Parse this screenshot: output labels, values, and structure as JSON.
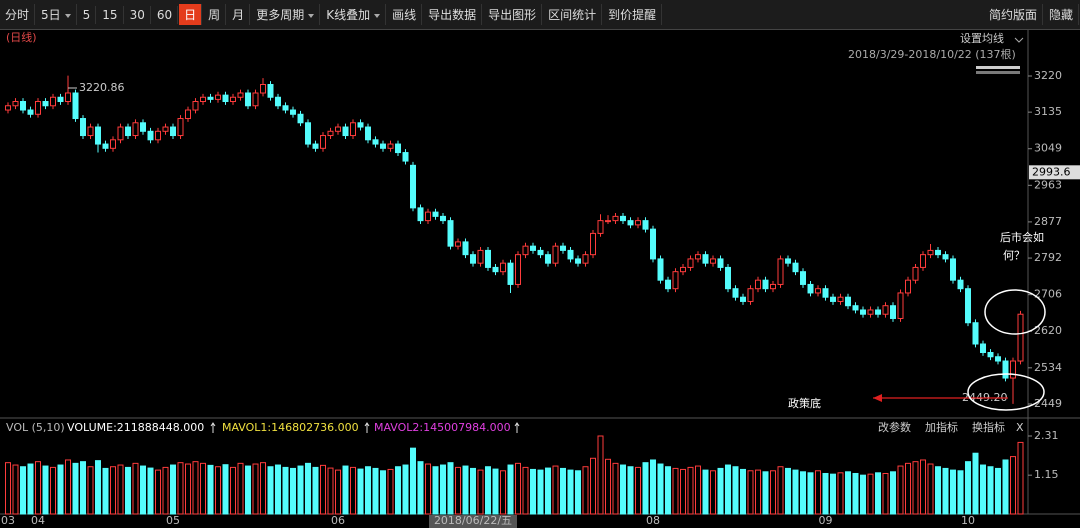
{
  "toolbar": {
    "left": [
      "分时",
      "5日",
      "5",
      "15",
      "30",
      "60",
      "日",
      "周",
      "月",
      "更多周期",
      "K线叠加",
      "画线",
      "导出数据",
      "导出图形",
      "区间统计",
      "到价提醒"
    ],
    "right": [
      "简约版面",
      "隐藏"
    ],
    "active": 6,
    "dropdowns": [
      1,
      9,
      10
    ]
  },
  "period_label": "(日线)",
  "ma_setting": "设置均线",
  "range_label": "2018/3/29-2018/10/22 (137根)",
  "volume_header": {
    "name": "VOL (5,10)",
    "volume": "VOLUME:211888448.000",
    "mavol1": "MAVOL1:146802736.000",
    "mavol2": "MAVOL2:145007984.000",
    "buttons": [
      "改参数",
      "加指标",
      "换指标",
      "X"
    ]
  },
  "annotations": {
    "high": "3220.86",
    "low": "2449.20",
    "policy_bottom": "政策底",
    "question": [
      "后市会如",
      "何？"
    ]
  },
  "chart_data": {
    "type": "candlestick",
    "up_color": "#ff3c3c",
    "down_color": "#54fcfc",
    "ylim": [
      2423.1,
      3328.1
    ],
    "yticks": [
      3220,
      3135,
      3049,
      2963,
      2877,
      2792,
      2706,
      2620,
      2534,
      2449
    ],
    "marker": 2993.6,
    "categories": [
      "03",
      null,
      null,
      null,
      "04",
      null,
      null,
      null,
      null,
      null,
      null,
      null,
      null,
      null,
      null,
      null,
      null,
      null,
      null,
      null,
      null,
      null,
      "05",
      null,
      null,
      null,
      null,
      null,
      null,
      null,
      null,
      null,
      null,
      null,
      null,
      null,
      null,
      null,
      null,
      null,
      null,
      null,
      null,
      null,
      "06",
      null,
      null,
      null,
      null,
      null,
      null,
      null,
      null,
      null,
      null,
      null,
      null,
      null,
      null,
      null,
      null,
      null,
      "2018/06/22/五",
      null,
      null,
      null,
      null,
      null,
      null,
      null,
      null,
      null,
      null,
      null,
      null,
      null,
      null,
      null,
      null,
      null,
      null,
      null,
      null,
      null,
      null,
      null,
      "08",
      null,
      null,
      null,
      null,
      null,
      null,
      null,
      null,
      null,
      null,
      null,
      null,
      null,
      null,
      null,
      null,
      null,
      null,
      null,
      null,
      null,
      null,
      "09",
      null,
      null,
      null,
      null,
      null,
      null,
      null,
      null,
      null,
      null,
      null,
      null,
      null,
      null,
      null,
      null,
      null,
      null,
      "10",
      null,
      null,
      null,
      null,
      null,
      null,
      null
    ],
    "highlighted_category": 62,
    "candles": [
      [
        3140,
        3158,
        3132,
        3150
      ],
      [
        3150,
        3168,
        3142,
        3160
      ],
      [
        3160,
        3168,
        3132,
        3140
      ],
      [
        3140,
        3148,
        3122,
        3130
      ],
      [
        3130,
        3168,
        3122,
        3160
      ],
      [
        3160,
        3168,
        3142,
        3150
      ],
      [
        3150,
        3178,
        3142,
        3170
      ],
      [
        3170,
        3178,
        3152,
        3160
      ],
      [
        3160,
        3220.86,
        3152,
        3180
      ],
      [
        3180,
        3188,
        3112,
        3120
      ],
      [
        3120,
        3128,
        3072,
        3080
      ],
      [
        3080,
        3108,
        3072,
        3100
      ],
      [
        3100,
        3108,
        3040,
        3060
      ],
      [
        3060,
        3068,
        3042,
        3050
      ],
      [
        3050,
        3078,
        3042,
        3070
      ],
      [
        3070,
        3108,
        3062,
        3100
      ],
      [
        3100,
        3108,
        3072,
        3080
      ],
      [
        3080,
        3118,
        3072,
        3110
      ],
      [
        3110,
        3118,
        3082,
        3090
      ],
      [
        3090,
        3098,
        3062,
        3070
      ],
      [
        3070,
        3098,
        3062,
        3090
      ],
      [
        3090,
        3108,
        3082,
        3100
      ],
      [
        3100,
        3108,
        3072,
        3080
      ],
      [
        3080,
        3128,
        3072,
        3120
      ],
      [
        3120,
        3148,
        3112,
        3140
      ],
      [
        3140,
        3168,
        3132,
        3160
      ],
      [
        3160,
        3178,
        3152,
        3170
      ],
      [
        3170,
        3178,
        3157,
        3165
      ],
      [
        3165,
        3183,
        3157,
        3175
      ],
      [
        3175,
        3183,
        3152,
        3160
      ],
      [
        3160,
        3178,
        3152,
        3170
      ],
      [
        3170,
        3188,
        3162,
        3180
      ],
      [
        3180,
        3188,
        3142,
        3150
      ],
      [
        3150,
        3188,
        3142,
        3180
      ],
      [
        3180,
        3215,
        3172,
        3200
      ],
      [
        3200,
        3208,
        3162,
        3170
      ],
      [
        3170,
        3178,
        3142,
        3150
      ],
      [
        3150,
        3158,
        3132,
        3140
      ],
      [
        3140,
        3148,
        3122,
        3130
      ],
      [
        3130,
        3138,
        3102,
        3110
      ],
      [
        3110,
        3118,
        3052,
        3060
      ],
      [
        3060,
        3068,
        3042,
        3050
      ],
      [
        3050,
        3088,
        3042,
        3080
      ],
      [
        3080,
        3098,
        3072,
        3090
      ],
      [
        3090,
        3108,
        3082,
        3100
      ],
      [
        3100,
        3108,
        3072,
        3080
      ],
      [
        3080,
        3118,
        3072,
        3110
      ],
      [
        3110,
        3118,
        3092,
        3100
      ],
      [
        3100,
        3108,
        3062,
        3070
      ],
      [
        3070,
        3078,
        3052,
        3060
      ],
      [
        3060,
        3068,
        3042,
        3050
      ],
      [
        3050,
        3068,
        3042,
        3060
      ],
      [
        3060,
        3068,
        3032,
        3040
      ],
      [
        3040,
        3048,
        3012,
        3020
      ],
      [
        3010,
        3018,
        2902,
        2910
      ],
      [
        2910,
        2918,
        2872,
        2880
      ],
      [
        2880,
        2908,
        2872,
        2900
      ],
      [
        2900,
        2908,
        2882,
        2890
      ],
      [
        2890,
        2898,
        2872,
        2880
      ],
      [
        2880,
        2888,
        2812,
        2820
      ],
      [
        2820,
        2838,
        2812,
        2830
      ],
      [
        2830,
        2838,
        2792,
        2800
      ],
      [
        2800,
        2808,
        2772,
        2780
      ],
      [
        2780,
        2818,
        2772,
        2810
      ],
      [
        2810,
        2818,
        2762,
        2770
      ],
      [
        2770,
        2778,
        2752,
        2760
      ],
      [
        2760,
        2788,
        2752,
        2780
      ],
      [
        2780,
        2788,
        2710,
        2730
      ],
      [
        2730,
        2808,
        2722,
        2800
      ],
      [
        2800,
        2828,
        2792,
        2820
      ],
      [
        2820,
        2828,
        2802,
        2810
      ],
      [
        2810,
        2818,
        2792,
        2800
      ],
      [
        2800,
        2808,
        2772,
        2780
      ],
      [
        2780,
        2828,
        2772,
        2820
      ],
      [
        2820,
        2828,
        2802,
        2810
      ],
      [
        2810,
        2818,
        2782,
        2790
      ],
      [
        2790,
        2798,
        2772,
        2780
      ],
      [
        2780,
        2808,
        2772,
        2800
      ],
      [
        2800,
        2858,
        2792,
        2850
      ],
      [
        2850,
        2895,
        2842,
        2880
      ],
      [
        2880,
        2893,
        2872,
        2880
      ],
      [
        2880,
        2898,
        2872,
        2890
      ],
      [
        2890,
        2898,
        2872,
        2880
      ],
      [
        2880,
        2888,
        2862,
        2870
      ],
      [
        2870,
        2888,
        2862,
        2880
      ],
      [
        2880,
        2888,
        2852,
        2860
      ],
      [
        2860,
        2868,
        2782,
        2790
      ],
      [
        2790,
        2798,
        2732,
        2740
      ],
      [
        2740,
        2748,
        2712,
        2720
      ],
      [
        2720,
        2768,
        2712,
        2760
      ],
      [
        2760,
        2778,
        2752,
        2770
      ],
      [
        2770,
        2798,
        2762,
        2790
      ],
      [
        2790,
        2808,
        2782,
        2800
      ],
      [
        2800,
        2808,
        2772,
        2780
      ],
      [
        2780,
        2798,
        2772,
        2790
      ],
      [
        2790,
        2798,
        2762,
        2770
      ],
      [
        2770,
        2778,
        2712,
        2720
      ],
      [
        2720,
        2728,
        2692,
        2700
      ],
      [
        2700,
        2708,
        2682,
        2690
      ],
      [
        2690,
        2728,
        2682,
        2720
      ],
      [
        2720,
        2748,
        2712,
        2740
      ],
      [
        2740,
        2748,
        2712,
        2720
      ],
      [
        2720,
        2738,
        2712,
        2730
      ],
      [
        2730,
        2798,
        2722,
        2790
      ],
      [
        2790,
        2798,
        2772,
        2780
      ],
      [
        2780,
        2788,
        2752,
        2760
      ],
      [
        2760,
        2768,
        2722,
        2730
      ],
      [
        2730,
        2738,
        2702,
        2710
      ],
      [
        2710,
        2728,
        2702,
        2720
      ],
      [
        2720,
        2728,
        2692,
        2700
      ],
      [
        2700,
        2708,
        2682,
        2690
      ],
      [
        2690,
        2708,
        2682,
        2700
      ],
      [
        2700,
        2708,
        2672,
        2680
      ],
      [
        2680,
        2688,
        2662,
        2670
      ],
      [
        2670,
        2678,
        2652,
        2660
      ],
      [
        2660,
        2678,
        2652,
        2670
      ],
      [
        2670,
        2678,
        2652,
        2660
      ],
      [
        2660,
        2688,
        2652,
        2680
      ],
      [
        2680,
        2688,
        2642,
        2650
      ],
      [
        2650,
        2718,
        2642,
        2710
      ],
      [
        2710,
        2748,
        2702,
        2740
      ],
      [
        2740,
        2778,
        2732,
        2770
      ],
      [
        2770,
        2808,
        2762,
        2800
      ],
      [
        2800,
        2825,
        2792,
        2810
      ],
      [
        2810,
        2818,
        2792,
        2800
      ],
      [
        2800,
        2808,
        2782,
        2790
      ],
      [
        2790,
        2798,
        2732,
        2740
      ],
      [
        2740,
        2748,
        2712,
        2720
      ],
      [
        2720,
        2728,
        2632,
        2640
      ],
      [
        2640,
        2648,
        2582,
        2590
      ],
      [
        2590,
        2598,
        2562,
        2570
      ],
      [
        2570,
        2578,
        2552,
        2560
      ],
      [
        2560,
        2568,
        2542,
        2550
      ],
      [
        2550,
        2558,
        2502,
        2510
      ],
      [
        2510,
        2558,
        2449.2,
        2550
      ],
      [
        2550,
        2668,
        2542,
        2660
      ]
    ],
    "volume": [
      1.52,
      1.45,
      1.4,
      1.48,
      1.55,
      1.42,
      1.38,
      1.45,
      1.6,
      1.5,
      1.55,
      1.4,
      1.58,
      1.35,
      1.4,
      1.45,
      1.38,
      1.5,
      1.42,
      1.36,
      1.3,
      1.38,
      1.45,
      1.52,
      1.48,
      1.55,
      1.5,
      1.44,
      1.4,
      1.46,
      1.38,
      1.5,
      1.42,
      1.48,
      1.52,
      1.4,
      1.45,
      1.38,
      1.35,
      1.42,
      1.5,
      1.38,
      1.44,
      1.36,
      1.3,
      1.42,
      1.38,
      1.33,
      1.4,
      1.35,
      1.28,
      1.32,
      1.4,
      1.45,
      1.95,
      1.55,
      1.48,
      1.4,
      1.45,
      1.52,
      1.38,
      1.42,
      1.35,
      1.3,
      1.4,
      1.33,
      1.28,
      1.45,
      1.5,
      1.38,
      1.32,
      1.3,
      1.36,
      1.42,
      1.35,
      1.3,
      1.28,
      1.4,
      1.65,
      2.31,
      1.62,
      1.5,
      1.45,
      1.4,
      1.38,
      1.52,
      1.6,
      1.48,
      1.4,
      1.35,
      1.32,
      1.38,
      1.42,
      1.3,
      1.28,
      1.35,
      1.45,
      1.4,
      1.32,
      1.28,
      1.3,
      1.25,
      1.28,
      1.4,
      1.35,
      1.3,
      1.25,
      1.22,
      1.28,
      1.2,
      1.18,
      1.22,
      1.25,
      1.2,
      1.15,
      1.18,
      1.22,
      1.2,
      1.25,
      1.42,
      1.5,
      1.55,
      1.6,
      1.48,
      1.4,
      1.35,
      1.3,
      1.28,
      1.55,
      1.8,
      1.45,
      1.4,
      1.35,
      1.6,
      1.7,
      2.12
    ],
    "vol_ylim": [
      0,
      2.31
    ],
    "vol_yticks": [
      1.15,
      2.31
    ]
  }
}
